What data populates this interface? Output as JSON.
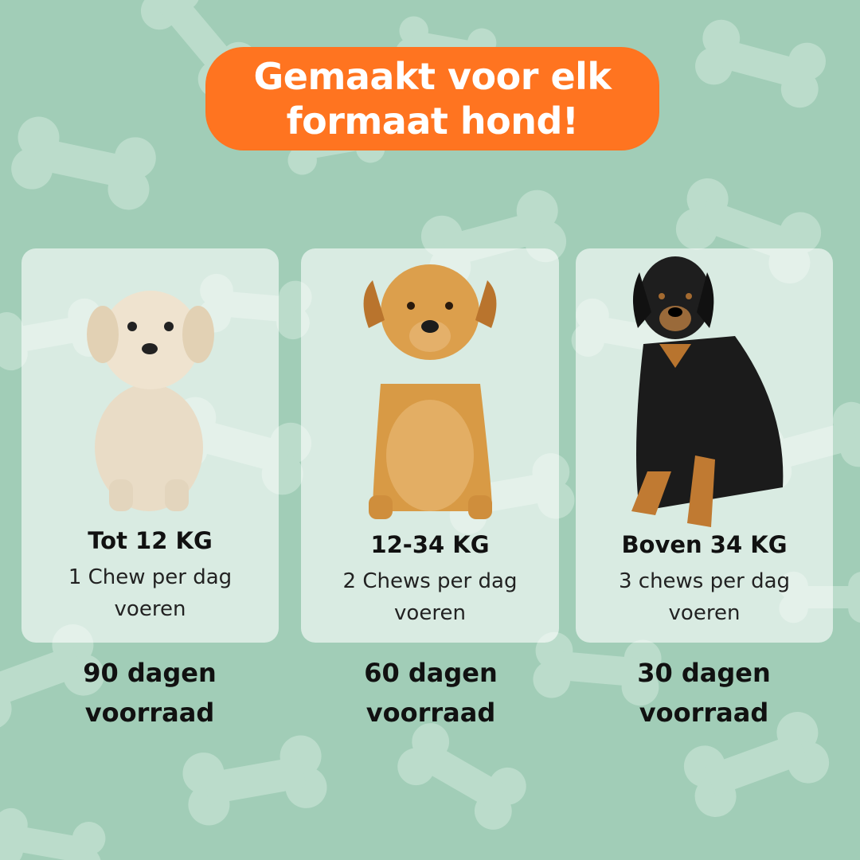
{
  "banner": {
    "title": "Gemaakt voor elk formaat hond!"
  },
  "colors": {
    "background": "#a1cdb7",
    "bone": "#bbdccb",
    "banner": "#ff7420"
  },
  "cards": [
    {
      "weight": "Tot 12 KG",
      "dose": "1 Chew per dag voeren",
      "supply": "90 dagen voorraad",
      "dog": "small-cream-dog"
    },
    {
      "weight": "12-34 KG",
      "dose": "2 Chews per dag voeren",
      "supply": "60 dagen voorraad",
      "dog": "golden-labrador"
    },
    {
      "weight": "Boven 34 KG",
      "dose": "3 chews per dag voeren",
      "supply": "30 dagen voorraad",
      "dog": "black-tan-large-dog"
    }
  ]
}
